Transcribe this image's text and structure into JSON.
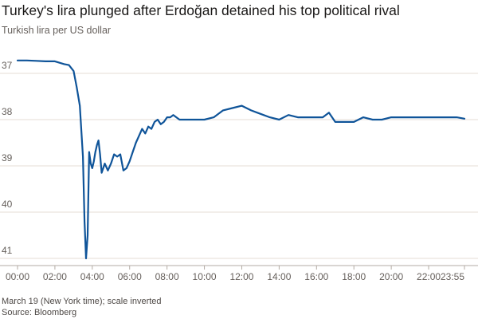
{
  "chart_data": {
    "type": "line",
    "title": "Turkey's lira plunged after Erdoğan detained his top political rival",
    "subtitle": "Turkish lira per US dollar",
    "xlabel": "",
    "ylabel": "",
    "y_inverted": true,
    "ylim": [
      36.6,
      41.0
    ],
    "y_ticks": [
      37,
      38,
      39,
      40,
      41
    ],
    "x_tick_labels": [
      "00:00",
      "02:00",
      "04:00",
      "06:00",
      "08:00",
      "10:00",
      "12:00",
      "14:00",
      "16:00",
      "18:00",
      "20:00",
      "22:00",
      "23:55"
    ],
    "grid": true,
    "legend": "none",
    "color": "#0f5499",
    "series": [
      {
        "x": [
          "00:00",
          "00:30",
          "01:00",
          "01:30",
          "02:00",
          "02:30",
          "02:45",
          "03:00",
          "03:10",
          "03:20",
          "03:30",
          "03:35",
          "03:40",
          "03:45",
          "03:50",
          "03:55",
          "04:00",
          "04:05",
          "04:10",
          "04:15",
          "04:20",
          "04:25",
          "04:30",
          "04:40",
          "04:50",
          "05:00",
          "05:10",
          "05:20",
          "05:30",
          "05:40",
          "05:50",
          "06:00",
          "06:10",
          "06:20",
          "06:30",
          "06:40",
          "06:50",
          "07:00",
          "07:10",
          "07:20",
          "07:30",
          "07:40",
          "07:50",
          "08:00",
          "08:10",
          "08:20",
          "08:30",
          "08:40",
          "09:00",
          "09:30",
          "10:00",
          "10:30",
          "11:00",
          "11:30",
          "12:00",
          "12:30",
          "12:50",
          "13:10",
          "13:30",
          "14:00",
          "14:30",
          "15:00",
          "15:30",
          "16:00",
          "16:20",
          "16:40",
          "17:00",
          "17:30",
          "18:00",
          "18:30",
          "19:00",
          "19:30",
          "20:00",
          "20:30",
          "21:00",
          "21:30",
          "22:00",
          "22:30",
          "23:00",
          "23:30",
          "23:55"
        ],
        "y": [
          36.72,
          36.72,
          36.73,
          36.74,
          36.74,
          36.8,
          36.82,
          36.95,
          37.3,
          37.7,
          38.8,
          40.2,
          41.0,
          40.5,
          38.7,
          38.95,
          39.05,
          38.9,
          38.7,
          38.55,
          38.45,
          38.75,
          39.15,
          38.95,
          39.1,
          38.95,
          38.75,
          38.8,
          38.75,
          39.1,
          39.05,
          38.9,
          38.7,
          38.5,
          38.35,
          38.2,
          38.3,
          38.15,
          38.2,
          38.05,
          38.0,
          38.1,
          38.05,
          37.95,
          37.95,
          37.9,
          37.95,
          38.0,
          38.0,
          38.0,
          38.0,
          37.95,
          37.8,
          37.75,
          37.7,
          37.8,
          37.85,
          37.9,
          37.95,
          38.0,
          37.9,
          37.95,
          37.95,
          37.95,
          37.95,
          37.85,
          38.05,
          38.05,
          38.05,
          37.95,
          38.0,
          38.0,
          37.95,
          37.95,
          37.95,
          37.95,
          37.95,
          37.95,
          37.95,
          37.95,
          37.98
        ]
      }
    ],
    "annotations": []
  },
  "footer": {
    "note": "March 19 (New York time); scale inverted",
    "source": "Source: Bloomberg"
  }
}
